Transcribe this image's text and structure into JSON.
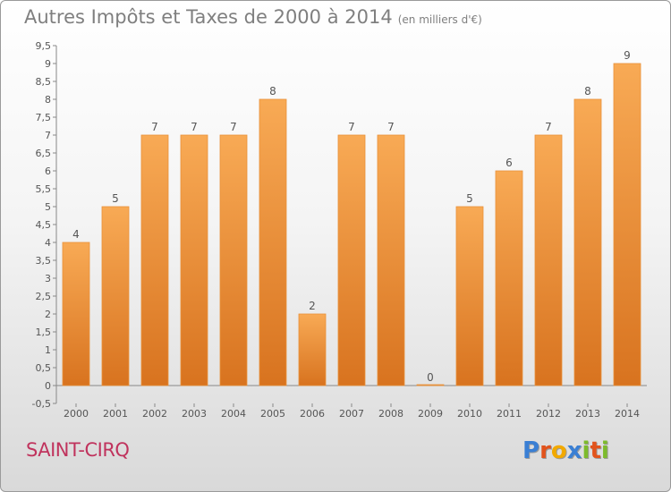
{
  "title": "Autres Impôts et Taxes de 2000 à 2014",
  "unit_note": "(en milliers d'€)",
  "commune": "SAINT-CIRQ",
  "logo": {
    "letters": [
      "P",
      "r",
      "o",
      "x",
      "i",
      "t",
      "i"
    ],
    "colors": [
      "#3a7fd4",
      "#e2531c",
      "#f2a900",
      "#3a7fd4",
      "#7dbb2c",
      "#e2531c",
      "#7dbb2c"
    ]
  },
  "colors": {
    "bar_top": "#f8aa55",
    "bar_bottom": "#d8731f",
    "text": "#555555"
  },
  "chart_data": {
    "type": "bar",
    "categories": [
      "2000",
      "2001",
      "2002",
      "2003",
      "2004",
      "2005",
      "2006",
      "2007",
      "2008",
      "2009",
      "2010",
      "2011",
      "2012",
      "2013",
      "2014"
    ],
    "values": [
      4,
      5,
      7,
      7,
      7,
      8,
      2,
      7,
      7,
      0,
      5,
      6,
      7,
      8,
      9
    ],
    "data_labels": [
      "4",
      "5",
      "7",
      "7",
      "7",
      "8",
      "2",
      "7",
      "7",
      "0",
      "5",
      "6",
      "7",
      "8",
      "9"
    ],
    "ylim": [
      -0.5,
      9.5
    ],
    "yticks": [
      "-0,5",
      "0",
      "0,5",
      "1",
      "1,5",
      "2",
      "2,5",
      "3",
      "3,5",
      "4",
      "4,5",
      "5",
      "5,5",
      "6",
      "6,5",
      "7",
      "7,5",
      "8",
      "8,5",
      "9",
      "9,5"
    ],
    "ytick_values": [
      -0.5,
      0,
      0.5,
      1,
      1.5,
      2,
      2.5,
      3,
      3.5,
      4,
      4.5,
      5,
      5.5,
      6,
      6.5,
      7,
      7.5,
      8,
      8.5,
      9,
      9.5
    ],
    "grid": false,
    "xlabel": "",
    "ylabel": ""
  }
}
